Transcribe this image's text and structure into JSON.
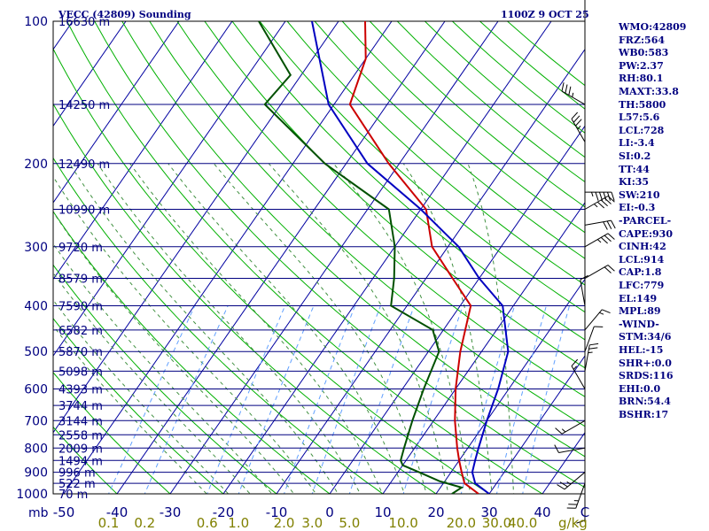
{
  "header": {
    "title": "VECC (42809) Sounding",
    "time": "1100Z  9 OCT 25"
  },
  "side_panel": [
    "WMO:42809",
    "FRZ:564",
    "WB0:583",
    "PW:2.37",
    "RH:80.1",
    "MAXT:33.8",
    "TH:5800",
    "L57:5.6",
    "LCL:728",
    "LI:-3.4",
    "SI:0.2",
    "TT:44",
    "KI:35",
    "SW:210",
    "EI:-0.3",
    "-PARCEL-",
    "CAPE:930",
    "CINH:42",
    "LCL:914",
    "CAP:1.8",
    "LFC:779",
    "EL:149",
    "MPL:89",
    "-WIND-",
    "STM:34/6",
    "HEL:-15",
    "SHR+:0.0",
    "SRDS:116",
    "EHI:0.0",
    "BRN:54.4",
    "BSHR:17"
  ],
  "chart_data": {
    "type": "line",
    "subtype": "skew-t log-p",
    "title": "VECC (42809) Sounding",
    "pressure_axis": {
      "label": "mb",
      "ticks": [
        100,
        200,
        300,
        400,
        500,
        600,
        700,
        800,
        900,
        1000
      ],
      "range": [
        100,
        1000
      ],
      "scale": "log"
    },
    "temperature_axis": {
      "ticks": [
        -50,
        -40,
        -30,
        -20,
        -10,
        0,
        10,
        20,
        30,
        40
      ],
      "end_label": "C",
      "range": [
        -50,
        50
      ]
    },
    "mixing_ratio_labels": [
      "0.1",
      "0.2",
      "0.6",
      "1.0",
      "2.0",
      "3.0",
      "5.0",
      "10.0",
      "20.0",
      "30.0",
      "40.0"
    ],
    "mixing_ratio_unit": "g/kg",
    "height_labels": [
      {
        "p": 100,
        "text": "16630 m"
      },
      {
        "p": 150,
        "text": "14250 m"
      },
      {
        "p": 200,
        "text": "12490 m"
      },
      {
        "p": 250,
        "text": "10990 m"
      },
      {
        "p": 300,
        "text": "9720 m"
      },
      {
        "p": 350,
        "text": "8579 m"
      },
      {
        "p": 400,
        "text": "7590 m"
      },
      {
        "p": 450,
        "text": "6582 m"
      },
      {
        "p": 500,
        "text": "5870 m"
      },
      {
        "p": 550,
        "text": "5098 m"
      },
      {
        "p": 600,
        "text": "4393 m"
      },
      {
        "p": 650,
        "text": "3744 m"
      },
      {
        "p": 700,
        "text": "3144 m"
      },
      {
        "p": 750,
        "text": "2558 m"
      },
      {
        "p": 800,
        "text": "2009 m"
      },
      {
        "p": 850,
        "text": "1494 m"
      },
      {
        "p": 900,
        "text": "996 m"
      },
      {
        "p": 950,
        "text": "522 m"
      },
      {
        "p": 1000,
        "text": "70 m"
      }
    ],
    "series": [
      {
        "key": "temperature",
        "color": "#cc0000",
        "points": [
          [
            1000,
            28
          ],
          [
            950,
            24
          ],
          [
            900,
            22
          ],
          [
            850,
            20
          ],
          [
            800,
            18
          ],
          [
            700,
            14
          ],
          [
            600,
            10
          ],
          [
            500,
            6
          ],
          [
            400,
            2
          ],
          [
            350,
            -5
          ],
          [
            300,
            -13
          ],
          [
            250,
            -19
          ],
          [
            200,
            -32
          ],
          [
            150,
            -47
          ],
          [
            120,
            -50
          ],
          [
            100,
            -55
          ]
        ]
      },
      {
        "key": "dewpoint",
        "color": "#005000",
        "points": [
          [
            1000,
            23
          ],
          [
            970,
            24
          ],
          [
            940,
            19
          ],
          [
            900,
            14
          ],
          [
            870,
            10
          ],
          [
            850,
            9
          ],
          [
            800,
            8
          ],
          [
            700,
            6
          ],
          [
            600,
            4
          ],
          [
            500,
            2
          ],
          [
            450,
            -2
          ],
          [
            400,
            -13
          ],
          [
            350,
            -16
          ],
          [
            300,
            -20
          ],
          [
            250,
            -26
          ],
          [
            200,
            -44
          ],
          [
            150,
            -63
          ],
          [
            130,
            -62
          ],
          [
            100,
            -75
          ]
        ]
      },
      {
        "key": "parcel",
        "color": "#0000c0",
        "points": [
          [
            1000,
            30
          ],
          [
            950,
            26
          ],
          [
            900,
            24
          ],
          [
            850,
            23
          ],
          [
            800,
            22
          ],
          [
            700,
            20
          ],
          [
            600,
            18
          ],
          [
            500,
            15
          ],
          [
            400,
            8
          ],
          [
            350,
            0
          ],
          [
            300,
            -8
          ],
          [
            250,
            -20
          ],
          [
            200,
            -36
          ],
          [
            150,
            -51
          ],
          [
            100,
            -65
          ]
        ]
      }
    ],
    "wind_barbs": [
      [
        100,
        0,
        5
      ],
      [
        150,
        300,
        25
      ],
      [
        180,
        330,
        25
      ],
      [
        230,
        90,
        45
      ],
      [
        250,
        60,
        35
      ],
      [
        270,
        80,
        30
      ],
      [
        300,
        60,
        25
      ],
      [
        350,
        60,
        20
      ],
      [
        400,
        350,
        10
      ],
      [
        450,
        40,
        5
      ],
      [
        500,
        20,
        10
      ],
      [
        550,
        10,
        15
      ],
      [
        600,
        330,
        5
      ],
      [
        700,
        240,
        5
      ],
      [
        800,
        260,
        10
      ],
      [
        900,
        230,
        15
      ],
      [
        950,
        200,
        15
      ],
      [
        1000,
        180,
        10
      ]
    ],
    "colors": {
      "isobar": "#000080",
      "isotherm": "#0000a0",
      "dry_adiabat": "#00b000",
      "moist_adiabat": "#409040",
      "mixing_ratio": "#60a0ff",
      "axis_label": "#000080",
      "mixing_label": "#808000",
      "frame": "#000000"
    }
  }
}
